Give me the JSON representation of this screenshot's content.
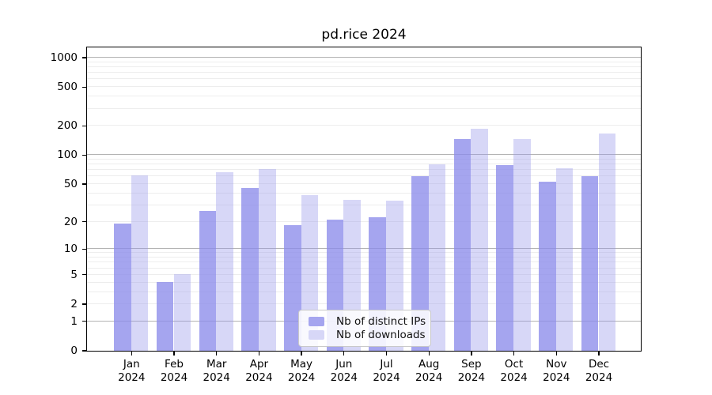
{
  "chart": {
    "title": "pd.rice 2024"
  },
  "chart_data": {
    "type": "bar",
    "title": "pd.rice 2024",
    "categories": [
      "Jan",
      "Feb",
      "Mar",
      "Apr",
      "May",
      "Jun",
      "Jul",
      "Aug",
      "Sep",
      "Oct",
      "Nov",
      "Dec"
    ],
    "x_year_label": "2024",
    "series": [
      {
        "name": "Nb of distinct IPs",
        "color_flat": "#a5a5ef",
        "values": [
          19,
          4,
          26,
          45,
          18,
          21,
          22,
          60,
          144,
          78,
          52,
          60
        ]
      },
      {
        "name": "Nb of downloads",
        "color_flat": "#d7d7f7",
        "values": [
          61,
          5,
          66,
          71,
          38,
          34,
          33,
          80,
          185,
          145,
          72,
          165
        ]
      }
    ],
    "yscale": "log1p",
    "yticks": [
      0,
      1,
      2,
      5,
      10,
      20,
      50,
      100,
      200,
      500,
      1000
    ],
    "ylim": [
      0,
      1275
    ],
    "grid": {
      "major_at": [
        1,
        10,
        100,
        1000
      ],
      "minor": "2-9 per decade",
      "orientation": "horizontal"
    },
    "legend_position": "lower center",
    "xlabel": "",
    "ylabel": ""
  }
}
